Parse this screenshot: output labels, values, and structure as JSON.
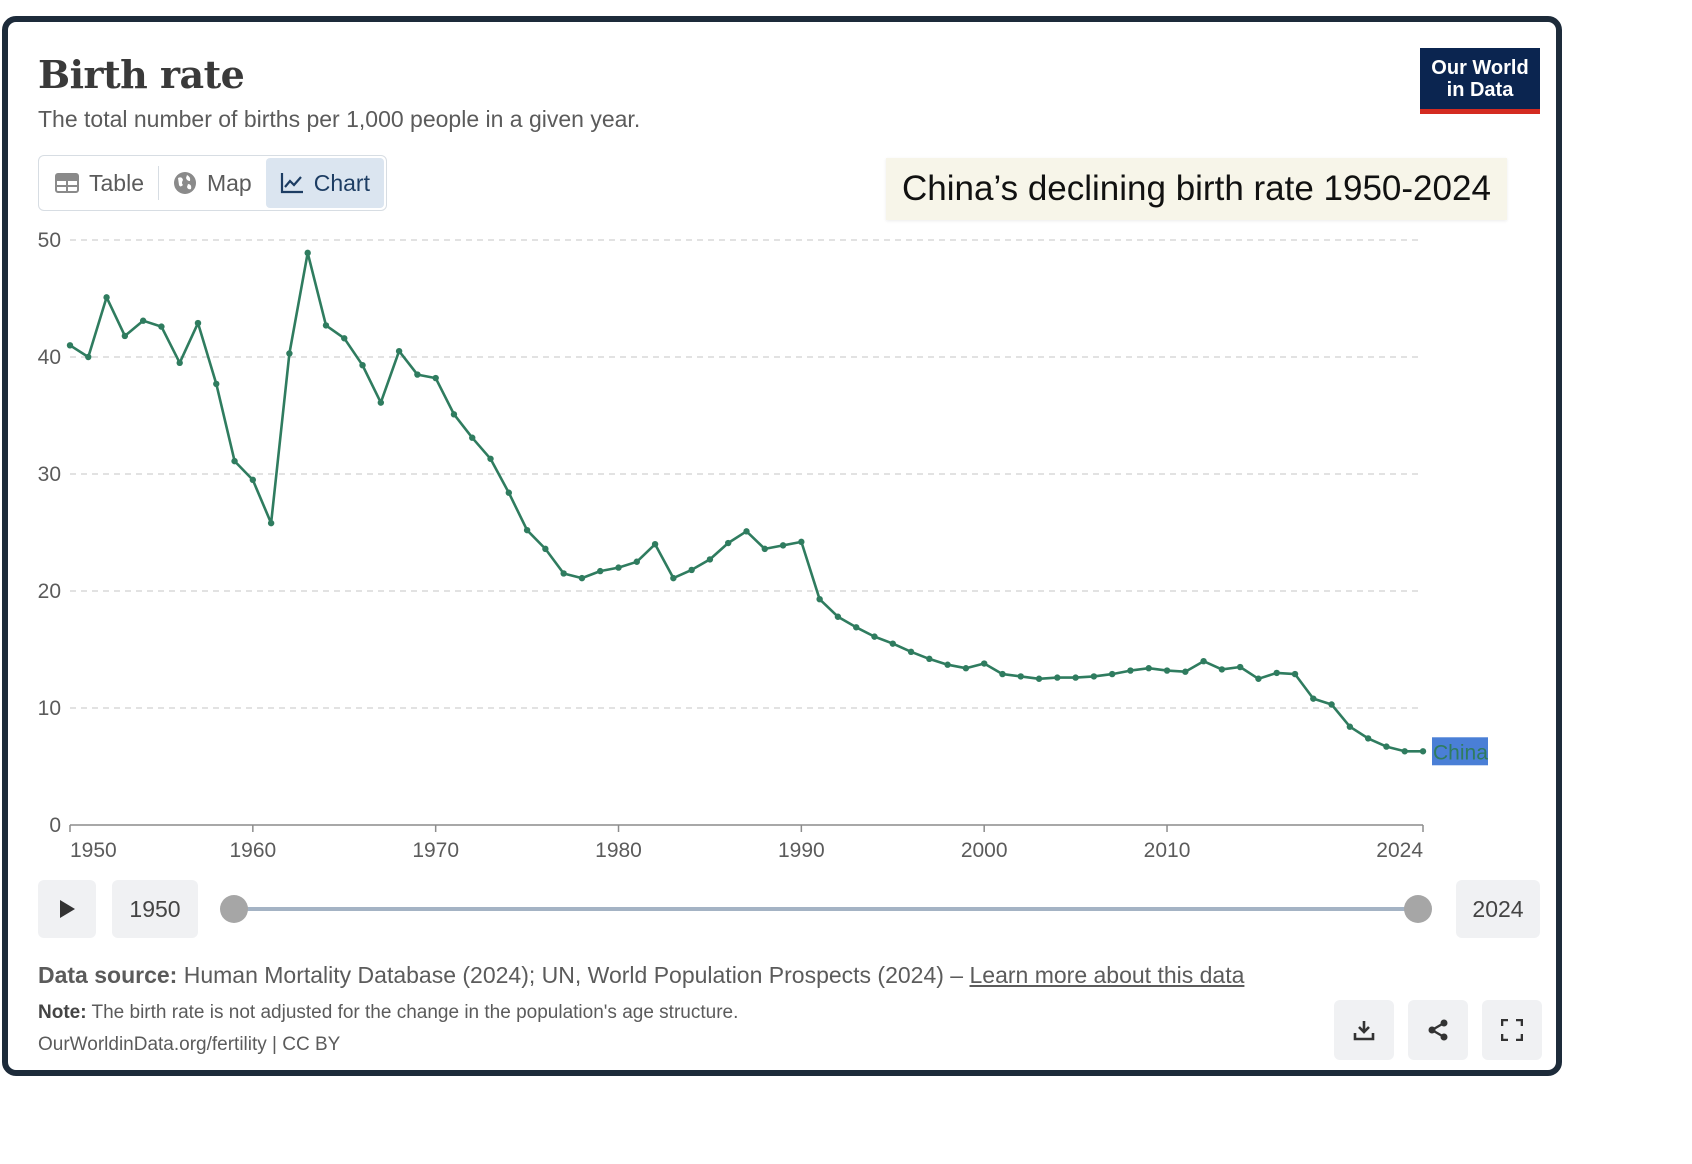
{
  "header": {
    "title": "Birth rate",
    "subtitle": "The total number of births per 1,000 people in a given year."
  },
  "logo": {
    "line1": "Our World",
    "line2": "in Data"
  },
  "tabs": [
    {
      "label": "Table",
      "icon": "table-icon",
      "active": false
    },
    {
      "label": "Map",
      "icon": "globe-icon",
      "active": false
    },
    {
      "label": "Chart",
      "icon": "line-chart-icon",
      "active": true
    }
  ],
  "annotation": "China’s declining birth rate 1950-2024",
  "timeline": {
    "start_year": "1950",
    "end_year": "2024",
    "play_icon": "play-icon"
  },
  "footer": {
    "source_label": "Data source:",
    "source_text": "Human Mortality Database (2024); UN, World Population Prospects (2024) –",
    "source_link": "Learn more about this data",
    "note_label": "Note:",
    "note_text": "The birth rate is not adjusted for the change in the population's age structure.",
    "credit": "OurWorldinData.org/fertility | CC BY"
  },
  "actions": [
    {
      "icon": "download-icon"
    },
    {
      "icon": "share-icon"
    },
    {
      "icon": "fullscreen-icon"
    }
  ],
  "colors": {
    "series": "#2f7c5f",
    "series_label_bg": "#4a7fd6",
    "grid": "#d9d9d9",
    "axis_text": "#5b5b5b",
    "logo_bg": "#0b2550",
    "logo_accent": "#d42b21"
  },
  "chart_data": {
    "type": "line",
    "ylim": [
      0,
      50
    ],
    "yticks": [
      0,
      10,
      20,
      30,
      40,
      50
    ],
    "xlim": [
      1950,
      2024
    ],
    "xticks": [
      1950,
      1960,
      1970,
      1980,
      1990,
      2000,
      2010,
      2024
    ],
    "grid": "horizontal dashed",
    "series": [
      {
        "name": "China",
        "x": [
          1950,
          1951,
          1952,
          1953,
          1954,
          1955,
          1956,
          1957,
          1958,
          1959,
          1960,
          1961,
          1962,
          1963,
          1964,
          1965,
          1966,
          1967,
          1968,
          1969,
          1970,
          1971,
          1972,
          1973,
          1974,
          1975,
          1976,
          1977,
          1978,
          1979,
          1980,
          1981,
          1982,
          1983,
          1984,
          1985,
          1986,
          1987,
          1988,
          1989,
          1990,
          1991,
          1992,
          1993,
          1994,
          1995,
          1996,
          1997,
          1998,
          1999,
          2000,
          2001,
          2002,
          2003,
          2004,
          2005,
          2006,
          2007,
          2008,
          2009,
          2010,
          2011,
          2012,
          2013,
          2014,
          2015,
          2016,
          2017,
          2018,
          2019,
          2020,
          2021,
          2022,
          2023,
          2024
        ],
        "values": [
          41.0,
          40.0,
          45.1,
          41.8,
          43.1,
          42.6,
          39.5,
          42.9,
          37.7,
          31.1,
          29.5,
          25.8,
          40.3,
          48.9,
          42.7,
          41.6,
          39.3,
          36.1,
          40.5,
          38.5,
          38.2,
          35.1,
          33.1,
          31.3,
          28.4,
          25.2,
          23.6,
          21.5,
          21.1,
          21.7,
          22.0,
          22.5,
          24.0,
          21.1,
          21.8,
          22.7,
          24.1,
          25.1,
          23.6,
          23.9,
          24.2,
          19.3,
          17.8,
          16.9,
          16.1,
          15.5,
          14.8,
          14.2,
          13.7,
          13.4,
          13.8,
          12.9,
          12.7,
          12.5,
          12.6,
          12.6,
          12.7,
          12.9,
          13.2,
          13.4,
          13.2,
          13.1,
          14.0,
          13.3,
          13.5,
          12.5,
          13.0,
          12.9,
          10.8,
          10.3,
          8.4,
          7.4,
          6.7,
          6.3,
          6.3
        ]
      }
    ]
  }
}
